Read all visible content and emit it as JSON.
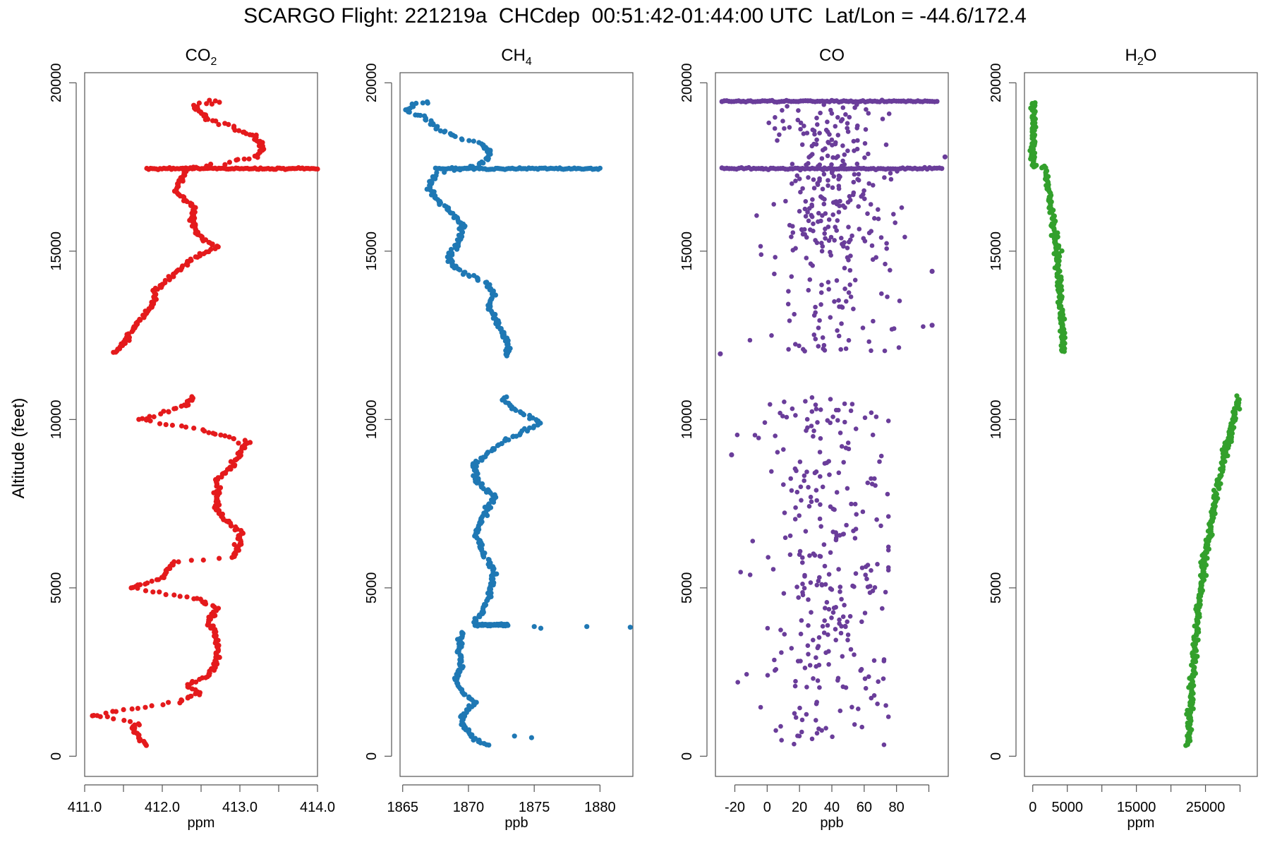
{
  "title": "SCARGO Flight: 221219a  CHCdep  00:51:42-01:44:00 UTC  Lat/Lon = -44.6/172.4",
  "ylabel": "Altitude (feet)",
  "chart_data": [
    {
      "type": "scatter",
      "title": "CO2",
      "title_main": "CO",
      "title_sub": "2",
      "title_tail": "",
      "xlabel": "ppm",
      "ylabel": "Altitude (feet)",
      "color": "#e41a1c",
      "xlim": [
        411.0,
        414.0
      ],
      "ylim": [
        -600,
        20300
      ],
      "xticks": [
        411.0,
        412.0,
        413.0,
        414.0
      ],
      "xtick_labels": [
        "411.0",
        "412.0",
        "413.0",
        "414.0"
      ],
      "xticks_unlabeled": [
        411.5,
        412.5,
        413.5
      ],
      "yticks": [
        0,
        5000,
        10000,
        15000,
        20000
      ],
      "ytick_labels": [
        "0",
        "5000",
        "10000",
        "15000",
        "20000"
      ],
      "profile": [
        [
          411.8,
          300
        ],
        [
          411.7,
          600
        ],
        [
          411.6,
          800
        ],
        [
          411.7,
          1000
        ],
        [
          411.1,
          1200
        ],
        [
          411.6,
          1400
        ],
        [
          412.2,
          1600
        ],
        [
          412.3,
          1700
        ],
        [
          412.5,
          1900
        ],
        [
          412.3,
          2100
        ],
        [
          412.6,
          2400
        ],
        [
          412.7,
          2800
        ],
        [
          412.7,
          3200
        ],
        [
          412.7,
          3600
        ],
        [
          412.6,
          4000
        ],
        [
          412.7,
          4400
        ],
        [
          412.4,
          4700
        ],
        [
          411.6,
          5000
        ],
        [
          412.0,
          5300
        ],
        [
          412.1,
          5600
        ],
        [
          412.2,
          5800
        ],
        [
          412.9,
          5900
        ],
        [
          413.0,
          6300
        ],
        [
          413.0,
          6700
        ],
        [
          412.8,
          7000
        ],
        [
          412.7,
          7400
        ],
        [
          412.7,
          7800
        ],
        [
          412.7,
          8200
        ],
        [
          412.9,
          8600
        ],
        [
          413.0,
          9000
        ],
        [
          413.1,
          9300
        ],
        [
          412.8,
          9500
        ],
        [
          412.5,
          9700
        ],
        [
          411.7,
          10000
        ],
        [
          412.0,
          10200
        ],
        [
          412.3,
          10400
        ],
        [
          412.4,
          10700
        ],
        [
          null,
          null
        ],
        [
          411.4,
          12000
        ],
        [
          411.5,
          12300
        ],
        [
          411.6,
          12600
        ],
        [
          411.7,
          12900
        ],
        [
          411.8,
          13200
        ],
        [
          411.9,
          13500
        ],
        [
          411.9,
          13800
        ],
        [
          412.0,
          14000
        ],
        [
          412.2,
          14400
        ],
        [
          412.4,
          14800
        ],
        [
          412.7,
          15100
        ],
        [
          412.5,
          15400
        ],
        [
          412.4,
          15700
        ],
        [
          412.4,
          16000
        ],
        [
          412.4,
          16300
        ],
        [
          412.2,
          16700
        ],
        [
          412.2,
          17000
        ],
        [
          412.3,
          17300
        ],
        [
          412.3,
          17450
        ],
        [
          412.8,
          17600
        ],
        [
          413.2,
          17800
        ],
        [
          413.3,
          18100
        ],
        [
          413.2,
          18400
        ],
        [
          412.9,
          18700
        ],
        [
          412.6,
          18900
        ],
        [
          412.5,
          19100
        ],
        [
          412.4,
          19300
        ],
        [
          412.6,
          19450
        ],
        [
          412.8,
          19450
        ]
      ],
      "spikes": [
        [
          [
            411.8,
            17450
          ],
          [
            414.0,
            17450
          ]
        ]
      ],
      "isolated": [
        [
          411.1,
          1200
        ],
        [
          411.6,
          5000
        ],
        [
          413.1,
          9300
        ],
        [
          411.4,
          12000
        ]
      ]
    },
    {
      "type": "scatter",
      "title": "CH4",
      "title_main": "CH",
      "title_sub": "4",
      "title_tail": "",
      "xlabel": "ppb",
      "ylabel": "Altitude (feet)",
      "color": "#1f78b4",
      "xlim": [
        1864.8,
        1882.5
      ],
      "ylim": [
        -600,
        20300
      ],
      "xticks": [
        1865,
        1870,
        1875,
        1880
      ],
      "xtick_labels": [
        "1865",
        "1870",
        "1875",
        "1880"
      ],
      "xticks_unlabeled": [],
      "yticks": [
        0,
        5000,
        10000,
        15000,
        20000
      ],
      "ytick_labels": [
        "0",
        "5000",
        "10000",
        "15000",
        "20000"
      ],
      "profile": [
        [
          1871.5,
          300
        ],
        [
          1870.5,
          500
        ],
        [
          1869.5,
          900
        ],
        [
          1869.5,
          1200
        ],
        [
          1870.5,
          1600
        ],
        [
          1869.5,
          1900
        ],
        [
          1869.0,
          2300
        ],
        [
          1869.5,
          2700
        ],
        [
          1869.3,
          3100
        ],
        [
          1869.5,
          3500
        ],
        [
          1869.5,
          3700
        ],
        [
          null,
          null
        ],
        [
          1870.5,
          4000
        ],
        [
          1871.0,
          4300
        ],
        [
          1871.5,
          4700
        ],
        [
          1871.8,
          5100
        ],
        [
          1872.0,
          5500
        ],
        [
          1871.5,
          5800
        ],
        [
          1871.0,
          6200
        ],
        [
          1870.5,
          6600
        ],
        [
          1871.0,
          7000
        ],
        [
          1871.5,
          7400
        ],
        [
          1872.0,
          7700
        ],
        [
          1871.0,
          8000
        ],
        [
          1870.5,
          8300
        ],
        [
          1870.5,
          8700
        ],
        [
          1871.5,
          9000
        ],
        [
          1872.5,
          9300
        ],
        [
          1874.0,
          9600
        ],
        [
          1875.5,
          9900
        ],
        [
          1874.5,
          10100
        ],
        [
          1873.5,
          10300
        ],
        [
          1872.5,
          10600
        ],
        [
          1873.0,
          10700
        ],
        [
          null,
          null
        ],
        [
          1873.0,
          11900
        ],
        [
          1873.0,
          12200
        ],
        [
          1872.5,
          12600
        ],
        [
          1872.0,
          13000
        ],
        [
          1871.5,
          13400
        ],
        [
          1872.0,
          13700
        ],
        [
          1871.5,
          14000
        ],
        [
          1870.5,
          14200
        ],
        [
          1869.0,
          14500
        ],
        [
          1868.5,
          14800
        ],
        [
          1869.0,
          15100
        ],
        [
          1869.5,
          15500
        ],
        [
          1869.5,
          15800
        ],
        [
          1868.5,
          16200
        ],
        [
          1867.5,
          16600
        ],
        [
          1867.0,
          17000
        ],
        [
          1867.5,
          17300
        ],
        [
          1870.0,
          17450
        ],
        [
          1871.5,
          17700
        ],
        [
          1871.5,
          18000
        ],
        [
          1871.0,
          18200
        ],
        [
          1869.0,
          18400
        ],
        [
          1867.5,
          18700
        ],
        [
          1866.5,
          19000
        ],
        [
          1865.3,
          19200
        ],
        [
          1866.0,
          19400
        ],
        [
          1867.5,
          19450
        ]
      ],
      "spikes": [
        [
          [
            1867.5,
            17450
          ],
          [
            1880.0,
            17450
          ]
        ],
        [
          [
            1870.5,
            3900
          ],
          [
            1873.0,
            3900
          ]
        ]
      ],
      "isolated": [
        [
          1875.0,
          3850
        ],
        [
          1875.5,
          3800
        ],
        [
          1879.0,
          3850
        ],
        [
          1882.3,
          3830
        ],
        [
          1873.5,
          600
        ],
        [
          1874.8,
          550
        ]
      ]
    },
    {
      "type": "scatter",
      "title": "CO",
      "title_main": "CO",
      "title_sub": "",
      "title_tail": "",
      "xlabel": "ppb",
      "ylabel": "Altitude (feet)",
      "color": "#6a3d9a",
      "xlim": [
        -32,
        112
      ],
      "ylim": [
        -600,
        20300
      ],
      "xticks": [
        -20,
        0,
        20,
        40,
        60,
        80,
        100
      ],
      "xtick_labels": [
        "-20",
        "0",
        "20",
        "40",
        "60",
        "80",
        ""
      ],
      "xticks_unlabeled": [],
      "yticks": [
        0,
        5000,
        10000,
        15000,
        20000
      ],
      "ytick_labels": [
        "0",
        "5000",
        "10000",
        "15000",
        "20000"
      ],
      "profile": [],
      "spikes": [
        [
          [
            -28,
            19450
          ],
          [
            105,
            19450
          ]
        ],
        [
          [
            -28,
            17450
          ],
          [
            108,
            17450
          ]
        ]
      ],
      "scatter_bands": [
        {
          "y_min": 300,
          "y_max": 10700,
          "x_mean": 35,
          "x_sd": 20,
          "x_min": -25,
          "x_max": 75,
          "count": 300
        },
        {
          "y_min": 12000,
          "y_max": 15000,
          "x_mean": 35,
          "x_sd": 22,
          "x_min": -30,
          "x_max": 105,
          "count": 80
        },
        {
          "y_min": 15000,
          "y_max": 19400,
          "x_mean": 40,
          "x_sd": 18,
          "x_min": -25,
          "x_max": 110,
          "count": 240
        }
      ],
      "isolated": [
        [
          -29,
          11950
        ],
        [
          102,
          12800
        ],
        [
          102,
          14400
        ],
        [
          110,
          17800
        ],
        [
          -22,
          8950
        ]
      ]
    },
    {
      "type": "scatter",
      "title": "H2O",
      "title_main": "H",
      "title_sub": "2",
      "title_tail": "O",
      "xlabel": "ppm",
      "ylabel": "Altitude (feet)",
      "color": "#33a02c",
      "xlim": [
        -1200,
        32500
      ],
      "ylim": [
        -600,
        20300
      ],
      "xticks": [
        0,
        5000,
        10000,
        15000,
        20000,
        25000,
        30000
      ],
      "xtick_labels": [
        "0",
        "5000",
        "",
        "15000",
        "",
        "25000",
        ""
      ],
      "xticks_unlabeled": [],
      "yticks": [
        0,
        5000,
        10000,
        15000,
        20000
      ],
      "ytick_labels": [
        "0",
        "5000",
        "10000",
        "15000",
        "20000"
      ],
      "profile": [
        [
          22500,
          300
        ],
        [
          23000,
          2000
        ],
        [
          23800,
          4000
        ],
        [
          25000,
          6000
        ],
        [
          26800,
          8000
        ],
        [
          28500,
          9500
        ],
        [
          29800,
          10700
        ],
        [
          null,
          null
        ],
        [
          4500,
          12000
        ],
        [
          4000,
          13500
        ],
        [
          3500,
          15000
        ],
        [
          2500,
          16500
        ],
        [
          1800,
          17500
        ],
        [
          0,
          17500
        ],
        [
          200,
          19450
        ]
      ],
      "spikes": [],
      "isolated": []
    }
  ]
}
